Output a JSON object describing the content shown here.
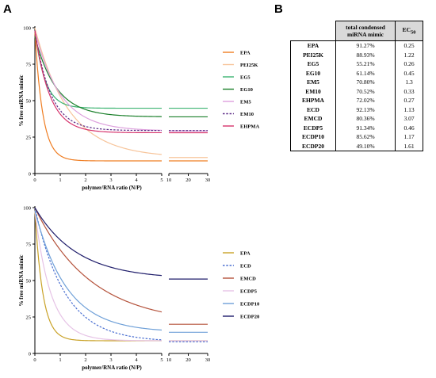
{
  "panel_a_label": "A",
  "panel_b_label": "B",
  "chart_data": [
    {
      "type": "line",
      "xlabel": "polymer/RNA ratio (N/P)",
      "ylabel": "% free miRNA mimic",
      "x_ticks": [
        "0",
        "1",
        "2",
        "3",
        "4",
        "5",
        "10",
        "20",
        "30"
      ],
      "y_ticks": [
        "0",
        "25",
        "50",
        "75",
        "100"
      ],
      "ylim": [
        0,
        100
      ],
      "x_segments": [
        [
          0,
          5
        ],
        [
          10,
          30
        ]
      ],
      "grid": false,
      "legend_position": "right",
      "series": [
        {
          "name": "EPA",
          "color": "#ef7d22",
          "dash": false,
          "start": 97,
          "plateau": 8.7,
          "rate": 3.2,
          "plateau_high_np": 8.7
        },
        {
          "name": "PEI25K",
          "color": "#f7c49a",
          "dash": false,
          "start": 100,
          "plateau": 11,
          "rate": 0.75,
          "plateau_high_np": 11
        },
        {
          "name": "EG5",
          "color": "#3cb371",
          "dash": false,
          "start": 98,
          "plateau": 44.8,
          "rate": 2.5,
          "plateau_high_np": 44.8
        },
        {
          "name": "EG10",
          "color": "#1a7f2a",
          "dash": false,
          "start": 94,
          "plateau": 38.9,
          "rate": 1.2,
          "plateau_high_np": 38.9
        },
        {
          "name": "EM5",
          "color": "#dda0dd",
          "dash": false,
          "start": 98,
          "plateau": 29.2,
          "rate": 1.0,
          "plateau_high_np": 29.2
        },
        {
          "name": "EM10",
          "color": "#5b2a86",
          "dash": true,
          "start": 98,
          "plateau": 29.5,
          "rate": 1.6,
          "plateau_high_np": 29.5
        },
        {
          "name": "EHPMA",
          "color": "#d6336c",
          "dash": false,
          "start": 98,
          "plateau": 28,
          "rate": 1.7,
          "plateau_high_np": 28
        }
      ]
    },
    {
      "type": "line",
      "xlabel": "polymer/RNA ratio (N/P)",
      "ylabel": "% free miRNA mimic",
      "x_ticks": [
        "0",
        "1",
        "2",
        "3",
        "4",
        "5",
        "10",
        "20",
        "30"
      ],
      "y_ticks": [
        "0",
        "25",
        "50",
        "75",
        "100"
      ],
      "ylim": [
        0,
        100
      ],
      "x_segments": [
        [
          0,
          5
        ],
        [
          10,
          30
        ]
      ],
      "grid": false,
      "legend_position": "right",
      "series": [
        {
          "name": "EPA",
          "color": "#c9a227",
          "dash": false,
          "start": 98,
          "plateau": 8.7,
          "rate": 3.2,
          "plateau_high_np": 8.7
        },
        {
          "name": "ECD",
          "color": "#4a6fd1",
          "dash": true,
          "start": 100,
          "plateau": 8,
          "rate": 0.85,
          "plateau_high_np": 8
        },
        {
          "name": "EMCD",
          "color": "#b5533c",
          "dash": false,
          "start": 100,
          "plateau": 20,
          "rate": 0.45,
          "plateau_high_np": 20
        },
        {
          "name": "ECDP5",
          "color": "#e6c3e6",
          "dash": false,
          "start": 98,
          "plateau": 8.7,
          "rate": 1.6,
          "plateau_high_np": 8.7
        },
        {
          "name": "ECDP10",
          "color": "#6fa0d8",
          "dash": false,
          "start": 98,
          "plateau": 14.5,
          "rate": 0.8,
          "plateau_high_np": 14.5
        },
        {
          "name": "ECDP20",
          "color": "#1f1d6b",
          "dash": false,
          "start": 100,
          "plateau": 51,
          "rate": 0.6,
          "plateau_high_np": 51
        }
      ]
    },
    {
      "type": "table",
      "columns": [
        "",
        "total condensed miRNA mimic",
        "EC50"
      ],
      "rows": [
        [
          "EPA",
          "91.27%",
          "0.25"
        ],
        [
          "PEI25K",
          "88.93%",
          "1.22"
        ],
        [
          "EG5",
          "55.21%",
          "0.26"
        ],
        [
          "EG10",
          "61.14%",
          "0.45"
        ],
        [
          "EM5",
          "70.80%",
          "1.3"
        ],
        [
          "EM10",
          "70.52%",
          "0.33"
        ],
        [
          "EHPMA",
          "72.02%",
          "0.27"
        ],
        [
          "ECD",
          "92.13%",
          "1.13"
        ],
        [
          "EMCD",
          "80.36%",
          "3.07"
        ],
        [
          "ECDP5",
          "91.34%",
          "0.46"
        ],
        [
          "ECDP10",
          "85.62%",
          "1.17"
        ],
        [
          "ECDP20",
          "49.10%",
          "1.61"
        ]
      ]
    }
  ],
  "table": {
    "header_line1": "total condensed",
    "header_line2": "miRNA mimic",
    "ec_main": "EC",
    "ec_sub": "50"
  }
}
